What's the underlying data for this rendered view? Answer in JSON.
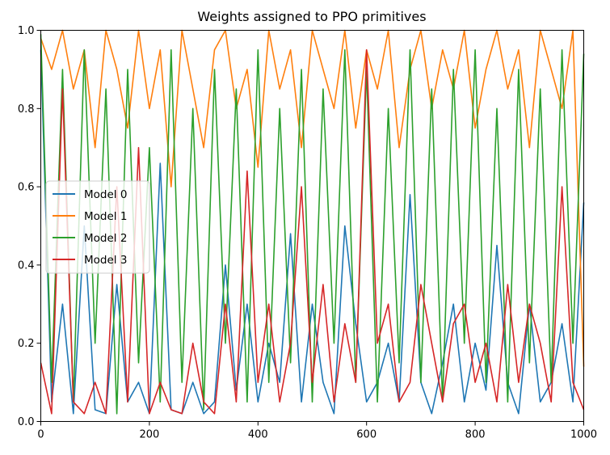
{
  "chart_data": {
    "type": "line",
    "title": "Weights assigned to PPO primitives",
    "xlabel": "",
    "ylabel": "",
    "xlim": [
      0,
      1000
    ],
    "ylim": [
      0.0,
      1.0
    ],
    "x_ticks": [
      "0",
      "200",
      "400",
      "600",
      "800",
      "1000"
    ],
    "y_ticks": [
      "0.0",
      "0.2",
      "0.4",
      "0.6",
      "0.8",
      "1.0"
    ],
    "grid": false,
    "legend_position": "center-left",
    "x": [
      0,
      20,
      40,
      60,
      80,
      100,
      120,
      140,
      160,
      180,
      200,
      220,
      240,
      260,
      280,
      300,
      320,
      340,
      360,
      380,
      400,
      420,
      440,
      460,
      480,
      500,
      520,
      540,
      560,
      580,
      600,
      620,
      640,
      660,
      680,
      700,
      720,
      740,
      760,
      780,
      800,
      820,
      840,
      860,
      880,
      900,
      920,
      940,
      960,
      980,
      1000
    ],
    "series": [
      {
        "name": "Model 0",
        "color": "#1f77b4",
        "values": [
          0.95,
          0.05,
          0.3,
          0.02,
          0.5,
          0.03,
          0.02,
          0.35,
          0.05,
          0.1,
          0.02,
          0.66,
          0.03,
          0.02,
          0.1,
          0.02,
          0.05,
          0.4,
          0.08,
          0.3,
          0.05,
          0.2,
          0.1,
          0.48,
          0.05,
          0.3,
          0.1,
          0.02,
          0.5,
          0.25,
          0.05,
          0.1,
          0.2,
          0.05,
          0.58,
          0.1,
          0.02,
          0.15,
          0.3,
          0.05,
          0.2,
          0.08,
          0.45,
          0.1,
          0.02,
          0.3,
          0.05,
          0.1,
          0.25,
          0.05,
          0.56
        ]
      },
      {
        "name": "Model 1",
        "color": "#ff7f0e",
        "values": [
          0.98,
          0.9,
          1.0,
          0.85,
          0.95,
          0.7,
          1.0,
          0.9,
          0.75,
          1.0,
          0.8,
          0.95,
          0.6,
          1.0,
          0.85,
          0.7,
          0.95,
          1.0,
          0.8,
          0.9,
          0.65,
          1.0,
          0.85,
          0.95,
          0.7,
          1.0,
          0.9,
          0.8,
          1.0,
          0.75,
          0.95,
          0.85,
          1.0,
          0.7,
          0.9,
          1.0,
          0.8,
          0.95,
          0.85,
          1.0,
          0.75,
          0.9,
          1.0,
          0.85,
          0.95,
          0.7,
          1.0,
          0.9,
          0.8,
          1.0,
          0.14
        ]
      },
      {
        "name": "Model 2",
        "color": "#2ca02c",
        "values": [
          0.99,
          0.1,
          0.9,
          0.05,
          0.95,
          0.2,
          0.85,
          0.02,
          0.9,
          0.15,
          0.7,
          0.05,
          0.95,
          0.1,
          0.8,
          0.03,
          0.9,
          0.2,
          0.85,
          0.05,
          0.95,
          0.1,
          0.8,
          0.15,
          0.9,
          0.05,
          0.85,
          0.2,
          0.95,
          0.1,
          0.9,
          0.05,
          0.8,
          0.15,
          0.95,
          0.1,
          0.85,
          0.05,
          0.9,
          0.2,
          0.95,
          0.1,
          0.8,
          0.05,
          0.9,
          0.15,
          0.85,
          0.1,
          0.95,
          0.2,
          0.94
        ]
      },
      {
        "name": "Model 3",
        "color": "#d62728",
        "values": [
          0.15,
          0.02,
          0.85,
          0.05,
          0.02,
          0.1,
          0.02,
          0.6,
          0.05,
          0.7,
          0.02,
          0.1,
          0.03,
          0.02,
          0.2,
          0.05,
          0.02,
          0.3,
          0.05,
          0.64,
          0.1,
          0.3,
          0.05,
          0.2,
          0.6,
          0.1,
          0.35,
          0.05,
          0.25,
          0.1,
          0.95,
          0.2,
          0.3,
          0.05,
          0.1,
          0.35,
          0.2,
          0.05,
          0.25,
          0.3,
          0.1,
          0.2,
          0.05,
          0.35,
          0.1,
          0.3,
          0.2,
          0.05,
          0.6,
          0.1,
          0.03
        ]
      }
    ]
  }
}
